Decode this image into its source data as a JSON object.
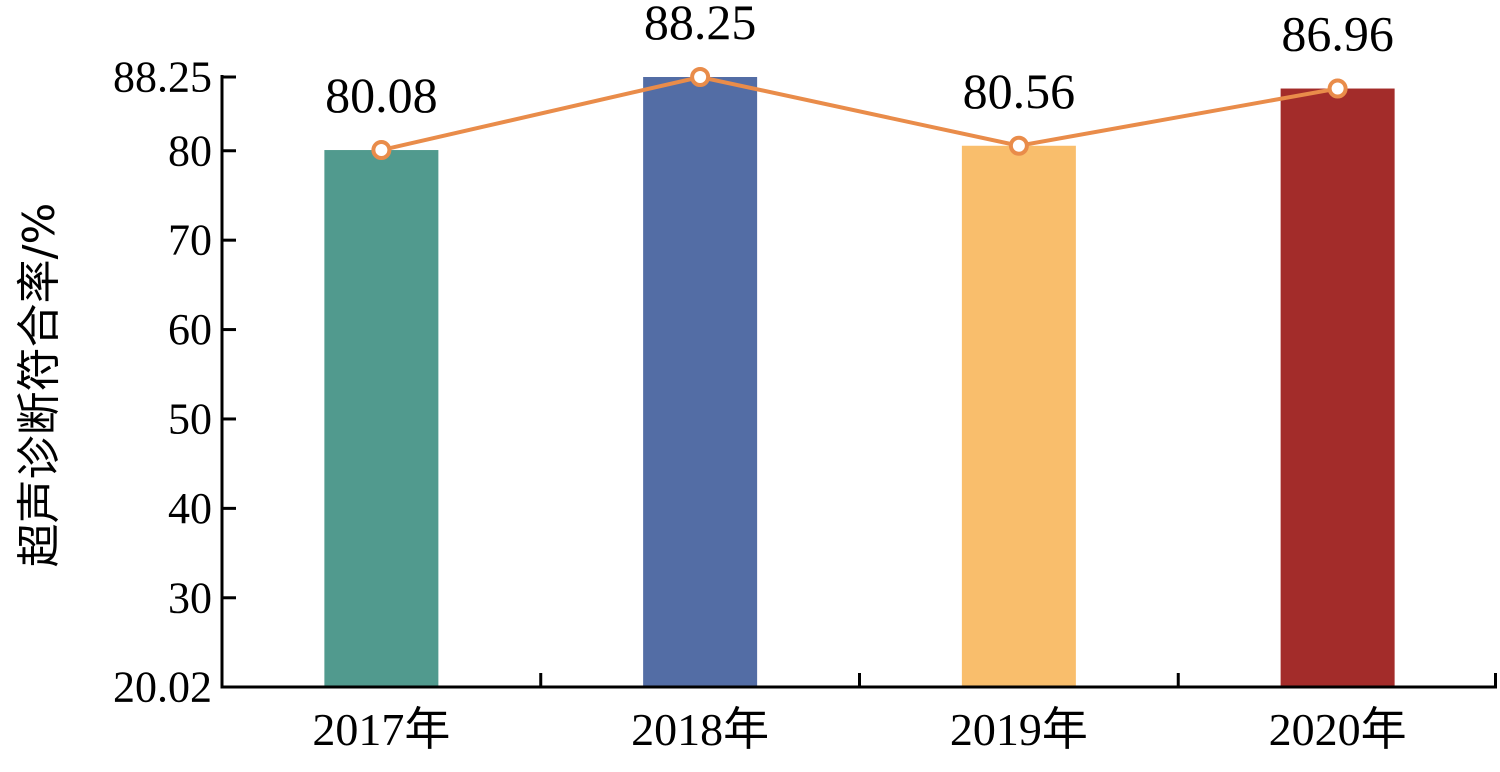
{
  "chart_data": {
    "type": "bar",
    "categories": [
      "2017年",
      "2018年",
      "2019年",
      "2020年"
    ],
    "values": [
      80.08,
      88.25,
      80.56,
      86.96
    ],
    "data_labels": [
      "80.08",
      "88.25",
      "80.56",
      "86.96"
    ],
    "bar_colors": [
      "#519a8e",
      "#536da5",
      "#f9be6c",
      "#a32c2a"
    ],
    "line": {
      "values": [
        80.08,
        88.25,
        80.56,
        86.96
      ],
      "color": "#e98c4a",
      "marker": "hollow-circle"
    },
    "ylabel": "超声诊断符合率/%",
    "xlabel": "",
    "title": "",
    "ylim": [
      20.02,
      88.25
    ],
    "yticks": [
      20.02,
      30,
      40,
      50,
      60,
      70,
      80,
      88.25
    ],
    "ytick_labels": [
      "20.02",
      "30",
      "40",
      "50",
      "60",
      "70",
      "80",
      "88.25"
    ],
    "grid": false,
    "legend": "none"
  }
}
